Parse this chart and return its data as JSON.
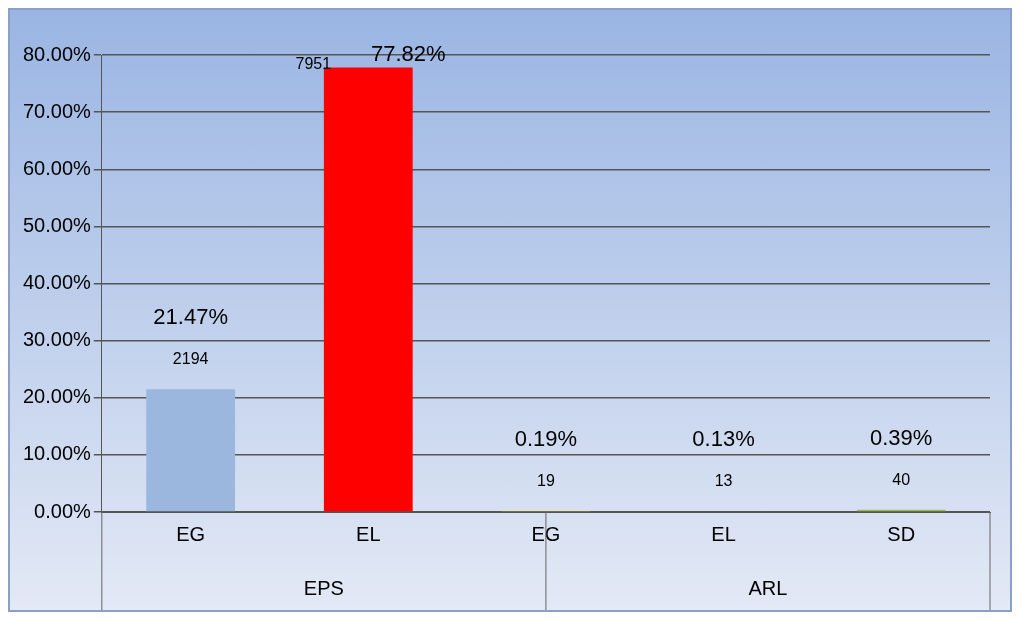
{
  "chart_data": {
    "type": "bar",
    "categories": [
      "EG",
      "EL",
      "EG",
      "EL",
      "SD"
    ],
    "values": [
      21.47,
      77.82,
      0.19,
      0.13,
      0.39
    ],
    "colors": [
      "#9bb7dd",
      "#ff0000",
      "#cccc00",
      "#c0706a",
      "#9bbb59"
    ],
    "value_labels": [
      "21.47%",
      "77.82%",
      "0.19%",
      "0.13%",
      "0.39%"
    ],
    "annotations": [
      "2194",
      "7951",
      "19",
      "13",
      "40",
      "EPS",
      "ARL"
    ],
    "ylim": [
      0,
      80
    ],
    "yticks": [
      {
        "value": 0,
        "label": "0.00%"
      },
      {
        "value": 10,
        "label": "10.00%"
      },
      {
        "value": 20,
        "label": "20.00%"
      },
      {
        "value": 30,
        "label": "30.00%"
      },
      {
        "value": 40,
        "label": "40.00%"
      },
      {
        "value": 50,
        "label": "50.00%"
      },
      {
        "value": 60,
        "label": "60.00%"
      },
      {
        "value": 70,
        "label": "70.00%"
      },
      {
        "value": 80,
        "label": "80.00%"
      }
    ],
    "grid": "y",
    "legend": false
  }
}
